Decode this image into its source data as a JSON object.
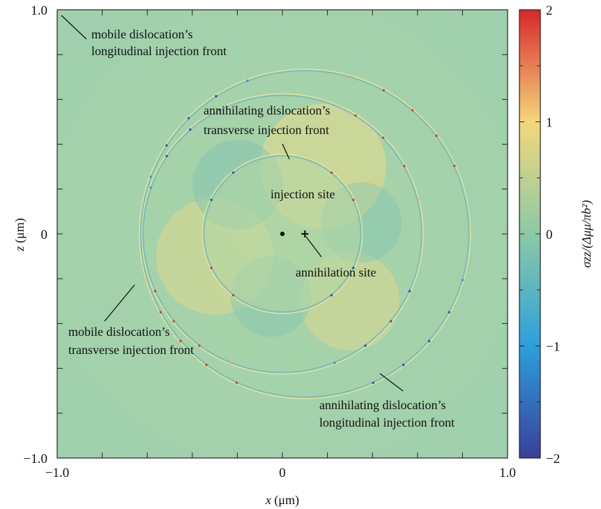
{
  "chart_data": {
    "type": "heatmap",
    "xlabel_var": "x",
    "xlabel_unit": "(μm)",
    "ylabel_var": "z",
    "ylabel_unit": "(μm)",
    "xlim": [
      -1.0,
      1.0
    ],
    "ylim": [
      -1.0,
      1.0
    ],
    "x_ticklabels": [
      {
        "value": -1.0,
        "label": "−1.0"
      },
      {
        "value": 0,
        "label": "0"
      },
      {
        "value": 1.0,
        "label": "1.0"
      }
    ],
    "y_ticklabels": [
      {
        "value": 1.0,
        "label": "1.0"
      },
      {
        "value": 0,
        "label": "0"
      },
      {
        "value": -1.0,
        "label": "−1.0"
      }
    ],
    "colorbar": {
      "label": "σzz/(Δμμ/πb²)",
      "range": [
        -2,
        2
      ],
      "ticklabels": [
        {
          "value": 2,
          "label": "2"
        },
        {
          "value": 1,
          "label": "1"
        },
        {
          "value": 0,
          "label": "0"
        },
        {
          "value": -1,
          "label": "−1"
        },
        {
          "value": -2,
          "label": "−2"
        }
      ],
      "colors": [
        "#3a3f9a",
        "#2d9fdc",
        "#8cc9a6",
        "#f4d77a",
        "#d9262a"
      ]
    },
    "points": [
      {
        "name": "injection site",
        "x": 0.0,
        "z": 0.0
      },
      {
        "name": "annihilation site",
        "x": 0.1,
        "z": 0.0
      }
    ],
    "fronts": [
      {
        "name": "inner circle",
        "cx": 0.0,
        "cz": 0.0,
        "r": 0.35
      },
      {
        "name": "outer circle",
        "cx": 0.0,
        "cz": 0.0,
        "r": 0.62
      },
      {
        "name": "offset circle",
        "cx": 0.1,
        "cz": 0.0,
        "r": 0.73
      }
    ],
    "annotations": [
      {
        "lines": [
          "mobile dislocation’s",
          "longitudinal injection front"
        ]
      },
      {
        "lines": [
          "annihilating dislocation’s",
          "transverse injection front"
        ]
      },
      {
        "lines": [
          "injection site"
        ]
      },
      {
        "lines": [
          "annihilation site"
        ]
      },
      {
        "lines": [
          "mobile dislocation’s",
          "transverse injection front"
        ]
      },
      {
        "lines": [
          "annihilating dislocation’s",
          "longitudinal injection front"
        ]
      }
    ]
  }
}
